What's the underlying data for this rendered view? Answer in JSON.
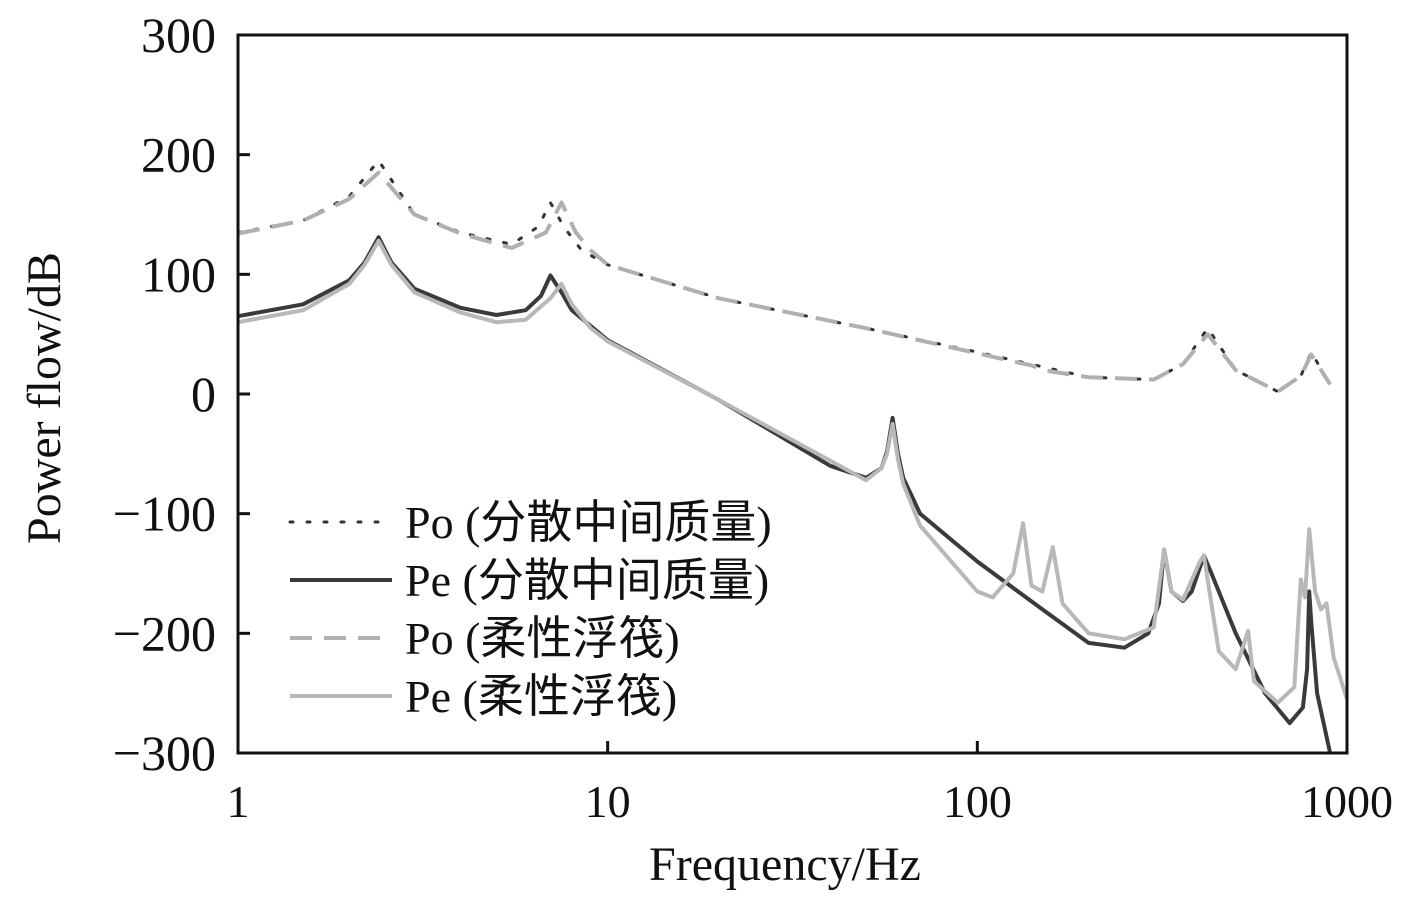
{
  "chart_data": {
    "type": "line",
    "xlabel": "Frequency/Hz",
    "ylabel": "Power flow/dB",
    "log_x": true,
    "xlim": [
      1,
      1000
    ],
    "xticks": [
      1,
      10,
      100,
      1000
    ],
    "ylim": [
      -300,
      300
    ],
    "yticks": [
      {
        "value": -300,
        "label": "−300"
      },
      {
        "value": -200,
        "label": "−200"
      },
      {
        "value": -100,
        "label": "−100"
      },
      0,
      100,
      200,
      300
    ],
    "legend": "center-left",
    "series": [
      {
        "name": "Po (分散中间质量)",
        "color": "#333333",
        "style": "dotted",
        "x": [
          1,
          1.5,
          2,
          2.4,
          3,
          4,
          5.5,
          6.5,
          7,
          7.6,
          8.5,
          10,
          20,
          50,
          100,
          200,
          300,
          360,
          420,
          500,
          650,
          750,
          800,
          900
        ],
        "values": [
          135,
          145,
          165,
          195,
          150,
          135,
          125,
          140,
          160,
          140,
          120,
          108,
          80,
          55,
          35,
          14,
          12,
          25,
          55,
          20,
          2,
          15,
          35,
          8
        ]
      },
      {
        "name": "Pe (分散中间质量)",
        "color": "#3a3a3a",
        "style": "solid",
        "x": [
          1,
          1.5,
          2,
          2.2,
          2.4,
          2.6,
          3,
          4,
          5,
          6,
          6.6,
          7,
          7.5,
          8,
          10,
          20,
          40,
          50,
          55,
          57,
          59,
          61,
          63,
          70,
          100,
          150,
          200,
          250,
          290,
          310,
          320,
          335,
          360,
          380,
          400,
          410,
          430,
          500,
          600,
          700,
          760,
          780,
          790,
          800,
          830,
          900
        ],
        "values": [
          65,
          75,
          95,
          110,
          131,
          110,
          88,
          72,
          66,
          70,
          82,
          99,
          85,
          70,
          45,
          -5,
          -60,
          -70,
          -62,
          -48,
          -20,
          -50,
          -70,
          -100,
          -140,
          -180,
          -208,
          -212,
          -200,
          -175,
          -130,
          -165,
          -173,
          -165,
          -145,
          -135,
          -150,
          -200,
          -250,
          -275,
          -262,
          -230,
          -165,
          -190,
          -250,
          -300
        ]
      },
      {
        "name": "Po (柔性浮筏)",
        "color": "#b0b0b0",
        "style": "dashed",
        "x": [
          1,
          1.5,
          2,
          2.4,
          3,
          4,
          5.5,
          6.8,
          7.5,
          8.2,
          9,
          10,
          20,
          50,
          100,
          130,
          140,
          150,
          200,
          300,
          360,
          420,
          500,
          650,
          750,
          800,
          900
        ],
        "values": [
          134,
          145,
          163,
          185,
          150,
          134,
          122,
          135,
          160,
          135,
          120,
          108,
          80,
          55,
          34,
          26,
          24,
          20,
          14,
          12,
          25,
          50,
          20,
          2,
          15,
          33,
          8
        ]
      },
      {
        "name": "Pe (柔性浮筏)",
        "color": "#b8b8b8",
        "style": "solid",
        "x": [
          1,
          1.5,
          2,
          2.2,
          2.4,
          2.6,
          3,
          4,
          5,
          6,
          7,
          7.5,
          8,
          9,
          10,
          20,
          50,
          55,
          57,
          59,
          61,
          63,
          70,
          100,
          110,
          125,
          133,
          140,
          150,
          160,
          170,
          200,
          250,
          300,
          320,
          335,
          360,
          400,
          410,
          450,
          500,
          540,
          560,
          650,
          720,
          750,
          770,
          790,
          820,
          850,
          880,
          920,
          1000
        ],
        "values": [
          60,
          70,
          92,
          108,
          128,
          108,
          85,
          68,
          60,
          62,
          80,
          92,
          75,
          55,
          44,
          -5,
          -72,
          -62,
          -50,
          -25,
          -55,
          -75,
          -110,
          -165,
          -170,
          -150,
          -108,
          -160,
          -165,
          -128,
          -175,
          -200,
          -205,
          -195,
          -130,
          -165,
          -172,
          -140,
          -135,
          -215,
          -230,
          -198,
          -240,
          -258,
          -245,
          -155,
          -170,
          -113,
          -165,
          -180,
          -175,
          -220,
          -255
        ]
      }
    ]
  }
}
